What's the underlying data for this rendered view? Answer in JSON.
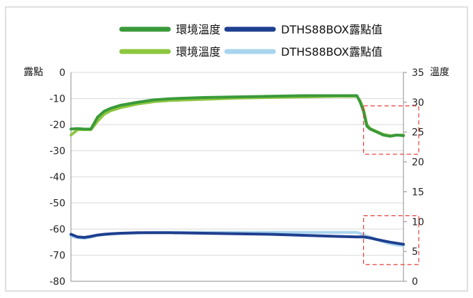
{
  "chart_data": {
    "type": "line",
    "x": [
      0,
      2,
      4,
      6,
      8,
      10,
      12,
      15,
      20,
      25,
      30,
      40,
      50,
      60,
      70,
      80,
      86,
      87,
      88,
      89,
      90,
      92,
      94,
      96,
      98,
      100
    ],
    "series": [
      {
        "name": "環境溫度",
        "axis": "right",
        "color": "#3a9a3a",
        "values": [
          25.5,
          25.6,
          25.5,
          25.5,
          27.5,
          28.5,
          29.0,
          29.5,
          30.0,
          30.4,
          30.6,
          30.8,
          30.9,
          31.0,
          31.1,
          31.1,
          31.1,
          30.0,
          28.5,
          26.0,
          25.5,
          25.0,
          24.5,
          24.3,
          24.5,
          24.4
        ]
      },
      {
        "name": "DTHS88BOX露點值",
        "axis": "left",
        "color": "#1f3f8f",
        "values": [
          -62.0,
          -63.0,
          -63.2,
          -62.8,
          -62.3,
          -62.0,
          -61.8,
          -61.6,
          -61.4,
          -61.4,
          -61.4,
          -61.6,
          -61.8,
          -62.0,
          -62.4,
          -62.8,
          -63.0,
          -63.0,
          -63.0,
          -63.2,
          -63.4,
          -64.0,
          -64.5,
          -65.0,
          -65.4,
          -65.8
        ]
      },
      {
        "name": "環境溫度",
        "axis": "right",
        "color": "#8dc63f",
        "values": [
          24.5,
          25.4,
          25.4,
          25.4,
          26.8,
          28.0,
          28.6,
          29.1,
          29.7,
          30.1,
          30.3,
          30.5,
          30.7,
          30.8,
          30.9,
          31.0,
          31.0,
          30.2,
          28.8,
          26.3,
          25.6,
          25.1,
          24.6,
          24.4,
          24.5,
          24.5
        ]
      },
      {
        "name": "DTHS88BOX露點值",
        "axis": "right",
        "color": "#a9d4ee",
        "values": [
          7.6,
          7.3,
          7.2,
          7.4,
          7.7,
          7.8,
          7.9,
          8.0,
          8.1,
          8.2,
          8.2,
          8.2,
          8.2,
          8.2,
          8.2,
          8.2,
          8.2,
          8.0,
          7.8,
          7.6,
          7.4,
          7.0,
          6.6,
          6.3,
          6.1,
          6.0
        ]
      }
    ],
    "left_axis": {
      "label": "露點",
      "min": -80,
      "max": 0,
      "ticks": [
        "0",
        "-10",
        "-20",
        "-30",
        "-40",
        "-50",
        "-60",
        "-70",
        "-80"
      ]
    },
    "right_axis": {
      "label": "溫度",
      "min": 0,
      "max": 35,
      "ticks": [
        "35",
        "30",
        "25",
        "20",
        "15",
        "10",
        "5",
        "0"
      ]
    },
    "grid": true,
    "legend": "top",
    "highlight_boxes": [
      {
        "color": "#e53935"
      },
      {
        "color": "#e53935"
      }
    ]
  }
}
